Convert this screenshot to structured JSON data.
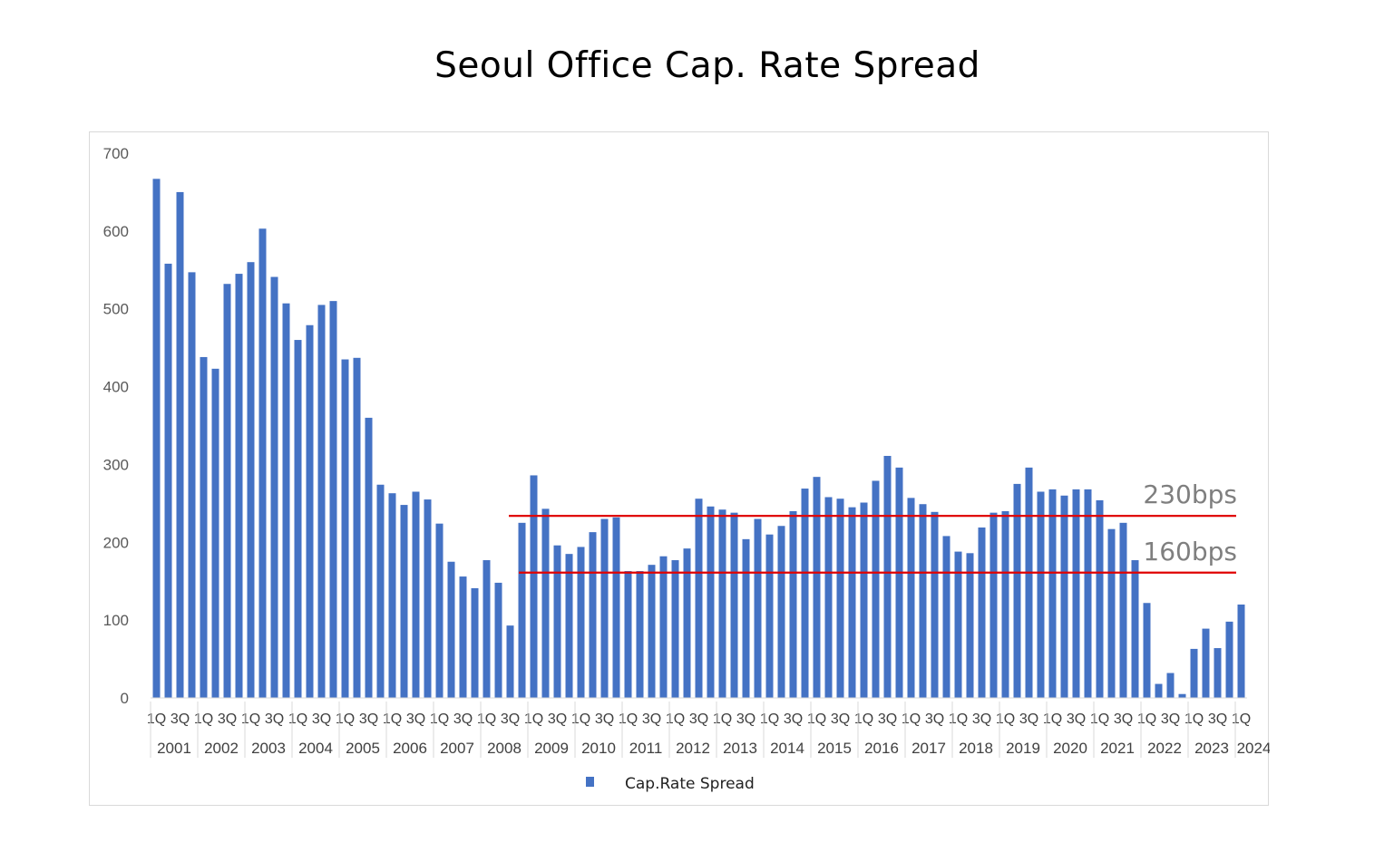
{
  "title": "Seoul Office Cap. Rate Spread",
  "chart_data": {
    "type": "bar",
    "title": "Seoul Office Cap. Rate Spread",
    "xlabel": "",
    "ylabel": "",
    "ylim": [
      0,
      700
    ],
    "yticks": [
      0,
      100,
      200,
      300,
      400,
      500,
      600,
      700
    ],
    "grid": false,
    "legend_position": "bottom",
    "bar_color": "#4472c4",
    "line_color": "#e00000",
    "series": [
      {
        "name": "Cap.Rate Spread",
        "values": [
          667,
          558,
          650,
          547,
          438,
          423,
          532,
          545,
          560,
          603,
          541,
          507,
          460,
          479,
          505,
          510,
          435,
          437,
          360,
          274,
          263,
          248,
          265,
          255,
          224,
          175,
          156,
          141,
          177,
          148,
          93,
          225,
          286,
          243,
          196,
          185,
          194,
          213,
          230,
          232,
          163,
          163,
          171,
          182,
          177,
          192,
          256,
          246,
          242,
          238,
          204,
          230,
          210,
          221,
          240,
          269,
          284,
          258,
          256,
          245,
          251,
          279,
          311,
          296,
          257,
          249,
          239,
          208,
          188,
          186,
          219,
          238,
          240,
          275,
          296,
          265,
          268,
          260,
          268,
          268,
          254,
          217,
          225,
          177,
          122,
          18,
          32,
          5,
          63,
          89,
          64,
          98,
          120
        ]
      }
    ],
    "x_quarter_labels": [
      "1Q",
      "3Q"
    ],
    "x_last_quarter_label": "1Q",
    "years": [
      "2001",
      "2002",
      "2003",
      "2004",
      "2005",
      "2006",
      "2007",
      "2008",
      "2009",
      "2010",
      "2011",
      "2012",
      "2013",
      "2014",
      "2015",
      "2016",
      "2017",
      "2018",
      "2019",
      "2020",
      "2021",
      "2022",
      "2023",
      "2024"
    ],
    "reference_lines": [
      {
        "label": "230bps",
        "value": 234
      },
      {
        "label": "160bps",
        "value": 161
      }
    ]
  }
}
